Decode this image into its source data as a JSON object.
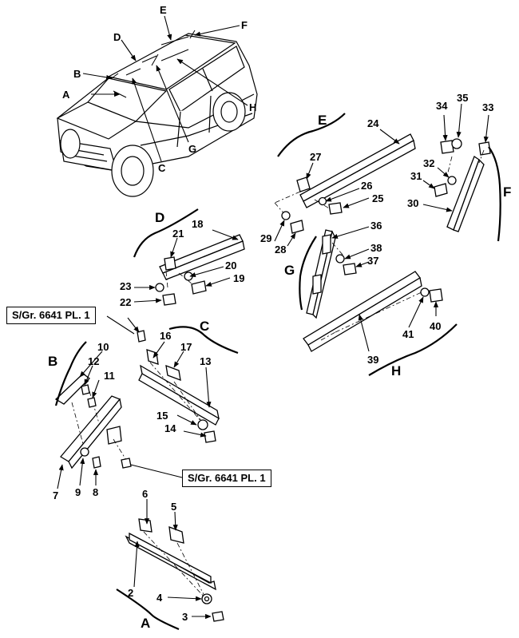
{
  "groups": {
    "A": "A",
    "B": "B",
    "C": "C",
    "D": "D",
    "E": "E",
    "F": "F",
    "G": "G",
    "H": "H"
  },
  "callouts": [
    "2",
    "3",
    "4",
    "5",
    "6",
    "7",
    "8",
    "9",
    "10",
    "11",
    "12",
    "13",
    "14",
    "15",
    "16",
    "17",
    "18",
    "19",
    "20",
    "21",
    "22",
    "23",
    "24",
    "25",
    "26",
    "27",
    "28",
    "29",
    "30",
    "31",
    "32",
    "33",
    "34",
    "35",
    "36",
    "37",
    "38",
    "39",
    "40",
    "41"
  ],
  "references": {
    "upper": "S/Gr. 6641 PL. 1",
    "lower": "S/Gr. 6641 PL. 1"
  }
}
